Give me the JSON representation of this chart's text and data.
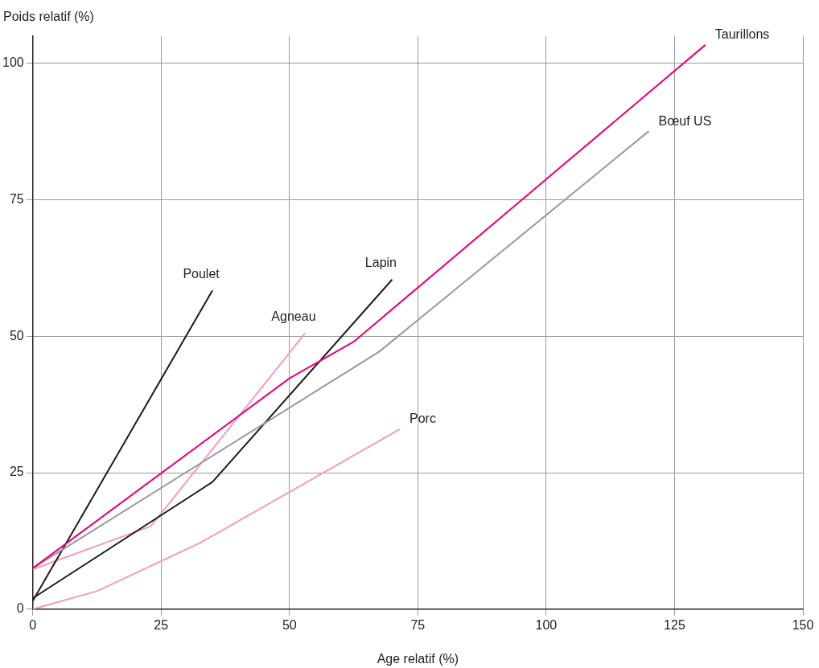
{
  "chart_data": {
    "type": "line",
    "xlabel": "Age relatif (%)",
    "ylabel": "Poids relatif (%)",
    "xlim": [
      0,
      150
    ],
    "xticks": [
      0,
      25,
      50,
      75,
      100,
      125,
      150
    ],
    "ylim": [
      0,
      105
    ],
    "yticks": [
      0,
      25,
      50,
      75,
      100
    ],
    "grid": true,
    "legend": false,
    "marker": "none",
    "line_style": "solid",
    "series": [
      {
        "name": "Taurillons",
        "color": "#e6007e",
        "x": [
          0,
          50,
          62.5,
          131
        ],
        "values": [
          7.5,
          42.3,
          49,
          103.4
        ]
      },
      {
        "name": "Bœuf US",
        "color": "#999999",
        "x": [
          0,
          67.5,
          120
        ],
        "values": [
          7.5,
          47.2,
          87.6
        ]
      },
      {
        "name": "Poulet",
        "color": "#1a1a1a",
        "x": [
          0,
          35
        ],
        "values": [
          1.5,
          58.4
        ]
      },
      {
        "name": "Lapin",
        "color": "#1a1a1a",
        "x": [
          0,
          35,
          70
        ],
        "values": [
          2,
          23.3,
          60.4
        ]
      },
      {
        "name": "Agneau",
        "color": "#f49ac1",
        "x": [
          0,
          23,
          53
        ],
        "values": [
          7.3,
          15.2,
          50.5
        ]
      },
      {
        "name": "Porc",
        "color": "#f49ac1",
        "x": [
          0,
          12.5,
          32.5,
          71.5
        ],
        "values": [
          0,
          3.3,
          12.1,
          33
        ]
      }
    ]
  }
}
